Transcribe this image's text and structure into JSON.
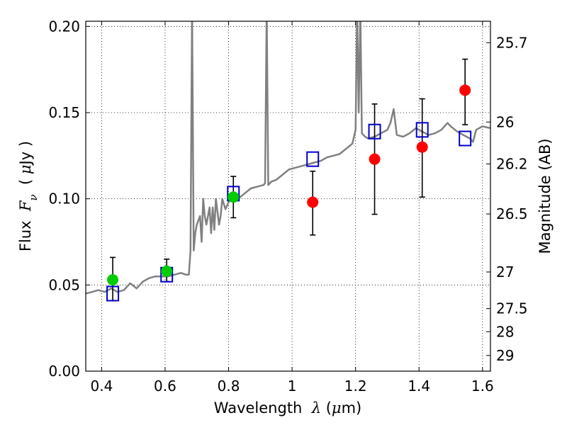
{
  "chart_data": {
    "type": "scatter",
    "title": "",
    "xlabel_parts": [
      "Wavelength  ",
      "λ",
      " (",
      "μ",
      "m)"
    ],
    "ylabel_parts": [
      "Flux  ",
      "F",
      "ν",
      "  ( ",
      "μ",
      "Jy )"
    ],
    "ylabel_right": "Magnitude (AB)",
    "xlim": [
      0.35,
      1.625
    ],
    "ylim": [
      0.0,
      0.203
    ],
    "grid": true,
    "x_ticks": [
      {
        "v": 0.4,
        "label": "0.4"
      },
      {
        "v": 0.6,
        "label": "0.6"
      },
      {
        "v": 0.8,
        "label": "0.8"
      },
      {
        "v": 1.0,
        "label": "1"
      },
      {
        "v": 1.2,
        "label": "1.2"
      },
      {
        "v": 1.4,
        "label": "1.4"
      },
      {
        "v": 1.6,
        "label": "1.6"
      }
    ],
    "y_ticks": [
      {
        "v": 0.0,
        "label": "0.00"
      },
      {
        "v": 0.05,
        "label": "0.05"
      },
      {
        "v": 0.1,
        "label": "0.10"
      },
      {
        "v": 0.15,
        "label": "0.15"
      },
      {
        "v": 0.2,
        "label": "0.20"
      }
    ],
    "y_right_ticks": [
      {
        "v": 25.7,
        "label": "25.7"
      },
      {
        "v": 26.0,
        "label": "26"
      },
      {
        "v": 26.2,
        "label": "26.2"
      },
      {
        "v": 26.5,
        "label": "26.5"
      },
      {
        "v": 27.0,
        "label": "27"
      },
      {
        "v": 27.5,
        "label": "27.5"
      },
      {
        "v": 28.0,
        "label": "28"
      },
      {
        "v": 29.0,
        "label": "29"
      }
    ],
    "series": [
      {
        "kind": "sed_model_line",
        "color": "#808080",
        "points": [
          [
            0.35,
            0.045
          ],
          [
            0.37,
            0.046
          ],
          [
            0.39,
            0.047
          ],
          [
            0.41,
            0.046
          ],
          [
            0.43,
            0.048
          ],
          [
            0.45,
            0.046
          ],
          [
            0.47,
            0.047
          ],
          [
            0.49,
            0.051
          ],
          [
            0.51,
            0.048
          ],
          [
            0.53,
            0.052
          ],
          [
            0.55,
            0.054
          ],
          [
            0.57,
            0.055
          ],
          [
            0.59,
            0.055
          ],
          [
            0.61,
            0.055
          ],
          [
            0.63,
            0.056
          ],
          [
            0.65,
            0.057
          ],
          [
            0.665,
            0.056
          ],
          [
            0.675,
            0.056
          ],
          [
            0.68,
            0.07
          ],
          [
            0.685,
            0.21
          ],
          [
            0.69,
            0.07
          ],
          [
            0.695,
            0.08
          ],
          [
            0.7,
            0.085
          ],
          [
            0.71,
            0.09
          ],
          [
            0.715,
            0.075
          ],
          [
            0.72,
            0.1
          ],
          [
            0.725,
            0.09
          ],
          [
            0.73,
            0.085
          ],
          [
            0.74,
            0.095
          ],
          [
            0.745,
            0.08
          ],
          [
            0.75,
            0.095
          ],
          [
            0.755,
            0.082
          ],
          [
            0.76,
            0.1
          ],
          [
            0.77,
            0.085
          ],
          [
            0.775,
            0.09
          ],
          [
            0.78,
            0.1
          ],
          [
            0.79,
            0.094
          ],
          [
            0.8,
            0.098
          ],
          [
            0.81,
            0.101
          ],
          [
            0.82,
            0.102
          ],
          [
            0.83,
            0.1
          ],
          [
            0.85,
            0.103
          ],
          [
            0.87,
            0.106
          ],
          [
            0.89,
            0.107
          ],
          [
            0.91,
            0.108
          ],
          [
            0.915,
            0.109
          ],
          [
            0.92,
            0.21
          ],
          [
            0.925,
            0.108
          ],
          [
            0.935,
            0.11
          ],
          [
            0.95,
            0.111
          ],
          [
            0.97,
            0.114
          ],
          [
            0.99,
            0.117
          ],
          [
            1.01,
            0.118
          ],
          [
            1.03,
            0.119
          ],
          [
            1.05,
            0.12
          ],
          [
            1.07,
            0.121
          ],
          [
            1.09,
            0.122
          ],
          [
            1.11,
            0.124
          ],
          [
            1.13,
            0.125
          ],
          [
            1.15,
            0.126
          ],
          [
            1.17,
            0.129
          ],
          [
            1.19,
            0.132
          ],
          [
            1.2,
            0.14
          ],
          [
            1.205,
            0.21
          ],
          [
            1.21,
            0.15
          ],
          [
            1.215,
            0.21
          ],
          [
            1.22,
            0.138
          ],
          [
            1.23,
            0.136
          ],
          [
            1.24,
            0.135
          ],
          [
            1.26,
            0.136
          ],
          [
            1.28,
            0.138
          ],
          [
            1.3,
            0.14
          ],
          [
            1.31,
            0.144
          ],
          [
            1.32,
            0.152
          ],
          [
            1.33,
            0.137
          ],
          [
            1.35,
            0.136
          ],
          [
            1.37,
            0.138
          ],
          [
            1.39,
            0.141
          ],
          [
            1.41,
            0.139
          ],
          [
            1.43,
            0.137
          ],
          [
            1.45,
            0.138
          ],
          [
            1.47,
            0.14
          ],
          [
            1.49,
            0.144
          ],
          [
            1.5,
            0.142
          ],
          [
            1.52,
            0.139
          ],
          [
            1.54,
            0.137
          ],
          [
            1.56,
            0.135
          ],
          [
            1.57,
            0.133
          ],
          [
            1.58,
            0.14
          ],
          [
            1.6,
            0.142
          ],
          [
            1.625,
            0.141
          ]
        ]
      },
      {
        "kind": "model_photometry",
        "marker": "open-square",
        "color": "#0000cc",
        "points": [
          [
            0.435,
            0.045
          ],
          [
            0.605,
            0.056
          ],
          [
            0.815,
            0.103
          ],
          [
            1.065,
            0.123
          ],
          [
            1.26,
            0.139
          ],
          [
            1.41,
            0.14
          ],
          [
            1.545,
            0.135
          ]
        ]
      },
      {
        "kind": "observed_optical",
        "marker": "filled-circle",
        "color": "#00cc00",
        "points": [
          {
            "x": 0.435,
            "y": 0.053,
            "lo": 0.041,
            "hi": 0.066
          },
          {
            "x": 0.605,
            "y": 0.058,
            "lo": 0.052,
            "hi": 0.065
          },
          {
            "x": 0.815,
            "y": 0.101,
            "lo": 0.089,
            "hi": 0.113
          }
        ]
      },
      {
        "kind": "observed_nir",
        "marker": "filled-circle",
        "color": "#ff0000",
        "points": [
          {
            "x": 1.065,
            "y": 0.098,
            "lo": 0.079,
            "hi": 0.116
          },
          {
            "x": 1.26,
            "y": 0.123,
            "lo": 0.091,
            "hi": 0.155
          },
          {
            "x": 1.41,
            "y": 0.13,
            "lo": 0.101,
            "hi": 0.158
          },
          {
            "x": 1.545,
            "y": 0.163,
            "lo": 0.143,
            "hi": 0.181
          }
        ]
      }
    ]
  }
}
